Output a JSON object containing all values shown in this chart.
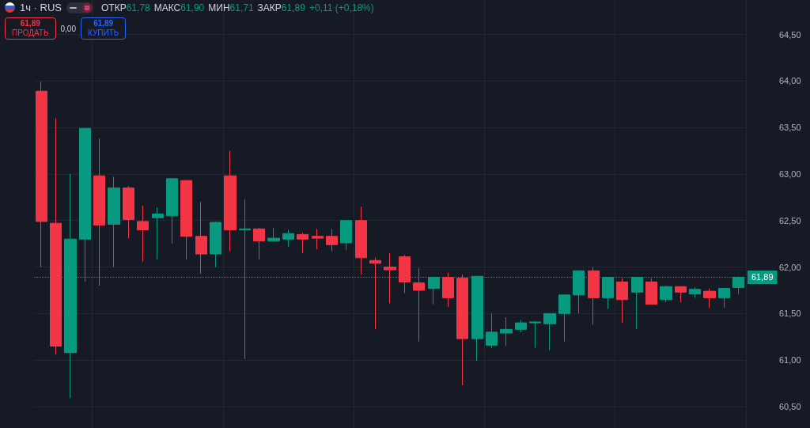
{
  "chart_data": {
    "type": "candlestick",
    "title": "1ч · RUS",
    "annotations": [
      "ОТКР",
      "61,78",
      "МАКС",
      "61,90",
      "МИН",
      "61,71",
      "ЗАКР",
      "61,89",
      "+0,11 (+0,18%)",
      "61,89",
      "ПРОДАТЬ",
      "0,00",
      "61,89",
      "КУПИТЬ"
    ],
    "categories": [
      null,
      null,
      null,
      null,
      null,
      null,
      null,
      null,
      null,
      null,
      null,
      null,
      null,
      null,
      null,
      null,
      null,
      null,
      null,
      null,
      null,
      null,
      null,
      null,
      null,
      null,
      null,
      null,
      null,
      null,
      null,
      null,
      null,
      null,
      null,
      null,
      null,
      null,
      null,
      null,
      null,
      null,
      null,
      null,
      null,
      null,
      null,
      null,
      null
    ],
    "ohlc": [
      [
        63.89,
        63.99,
        62.0,
        62.49
      ],
      [
        62.47,
        63.6,
        61.06,
        61.15
      ],
      [
        61.08,
        63.0,
        60.59,
        62.3
      ],
      [
        62.3,
        63.49,
        61.84,
        63.49
      ],
      [
        62.98,
        63.38,
        61.8,
        62.45
      ],
      [
        62.46,
        62.97,
        62.0,
        62.85
      ],
      [
        62.85,
        62.87,
        62.31,
        62.51
      ],
      [
        62.49,
        62.66,
        62.06,
        62.4
      ],
      [
        62.53,
        62.64,
        62.08,
        62.57
      ],
      [
        62.55,
        62.95,
        62.25,
        62.95
      ],
      [
        62.93,
        62.93,
        62.08,
        62.33
      ],
      [
        62.33,
        62.7,
        61.93,
        62.14
      ],
      [
        62.14,
        62.49,
        62.0,
        62.48
      ],
      [
        62.98,
        63.25,
        62.17,
        62.4
      ],
      [
        62.4,
        62.73,
        61.01,
        62.41
      ],
      [
        62.41,
        62.42,
        62.08,
        62.28
      ],
      [
        62.28,
        62.42,
        62.28,
        62.31
      ],
      [
        62.3,
        62.4,
        62.22,
        62.36
      ],
      [
        62.35,
        62.37,
        62.15,
        62.3
      ],
      [
        62.33,
        62.41,
        62.19,
        62.31
      ],
      [
        62.33,
        62.41,
        62.17,
        62.24
      ],
      [
        62.26,
        62.5,
        62.18,
        62.5
      ],
      [
        62.5,
        62.65,
        61.92,
        62.1
      ],
      [
        62.07,
        62.1,
        61.33,
        62.04
      ],
      [
        62.0,
        62.15,
        61.61,
        61.97
      ],
      [
        62.11,
        62.13,
        61.72,
        61.84
      ],
      [
        61.83,
        61.99,
        61.2,
        61.75
      ],
      [
        61.77,
        61.89,
        61.6,
        61.89
      ],
      [
        61.89,
        61.94,
        61.57,
        61.67
      ],
      [
        61.88,
        61.92,
        60.73,
        61.23
      ],
      [
        61.23,
        61.9,
        60.99,
        61.9
      ],
      [
        61.16,
        61.5,
        61.13,
        61.3
      ],
      [
        61.29,
        61.46,
        61.15,
        61.33
      ],
      [
        61.33,
        61.43,
        61.3,
        61.4
      ],
      [
        61.4,
        61.42,
        61.13,
        61.41
      ],
      [
        61.39,
        61.5,
        61.11,
        61.5
      ],
      [
        61.5,
        61.7,
        61.2,
        61.7
      ],
      [
        61.7,
        61.96,
        61.5,
        61.96
      ],
      [
        61.96,
        62.0,
        61.38,
        61.67
      ],
      [
        61.67,
        61.89,
        61.55,
        61.89
      ],
      [
        61.84,
        61.88,
        61.4,
        61.65
      ],
      [
        61.73,
        61.89,
        61.33,
        61.89
      ],
      [
        61.84,
        61.88,
        61.6,
        61.6
      ],
      [
        61.65,
        61.8,
        61.62,
        61.79
      ],
      [
        61.79,
        61.79,
        61.62,
        61.73
      ],
      [
        61.71,
        61.78,
        61.67,
        61.76
      ],
      [
        61.74,
        61.77,
        61.56,
        61.67
      ],
      [
        61.67,
        61.77,
        61.56,
        61.77
      ],
      [
        61.78,
        61.9,
        61.71,
        61.89
      ]
    ],
    "colors": [
      "#f23645",
      "#f23645",
      "#089981",
      "#089981",
      "#f23645",
      "#089981",
      "#f23645",
      "#f23645",
      "#089981",
      "#089981",
      "#f23645",
      "#f23645",
      "#089981",
      "#f23645",
      "#089981",
      "#f23645",
      "#089981",
      "#089981",
      "#f23645",
      "#f23645",
      "#f23645",
      "#089981",
      "#f23645",
      "#f23645",
      "#f23645",
      "#f23645",
      "#f23645",
      "#089981",
      "#f23645",
      "#f23645",
      "#089981",
      "#089981",
      "#089981",
      "#089981",
      "#089981",
      "#089981",
      "#089981",
      "#089981",
      "#f23645",
      "#089981",
      "#f23645",
      "#089981",
      "#f23645",
      "#089981",
      "#f23645",
      "#089981",
      "#f23645",
      "#089981",
      "#089981"
    ],
    "ylim": [
      60.27,
      64.87
    ],
    "yticks": [
      {
        "value": 60.5,
        "label": "60,50"
      },
      {
        "value": 61,
        "label": "61,00"
      },
      {
        "value": 61.5,
        "label": "61,50"
      },
      {
        "value": 62,
        "label": "62,00"
      },
      {
        "value": 62.5,
        "label": "62,50"
      },
      {
        "value": 63,
        "label": "63,00"
      },
      {
        "value": 63.5,
        "label": "63,50"
      },
      {
        "value": 64,
        "label": "64,00"
      },
      {
        "value": 64.5,
        "label": "64,50"
      }
    ],
    "ref_lines": [
      {
        "axis": "y",
        "value": 61.89,
        "label": "61,89",
        "color": "#089981",
        "line_style": "dotted"
      }
    ],
    "grid": true,
    "tick_labels": "y"
  }
}
